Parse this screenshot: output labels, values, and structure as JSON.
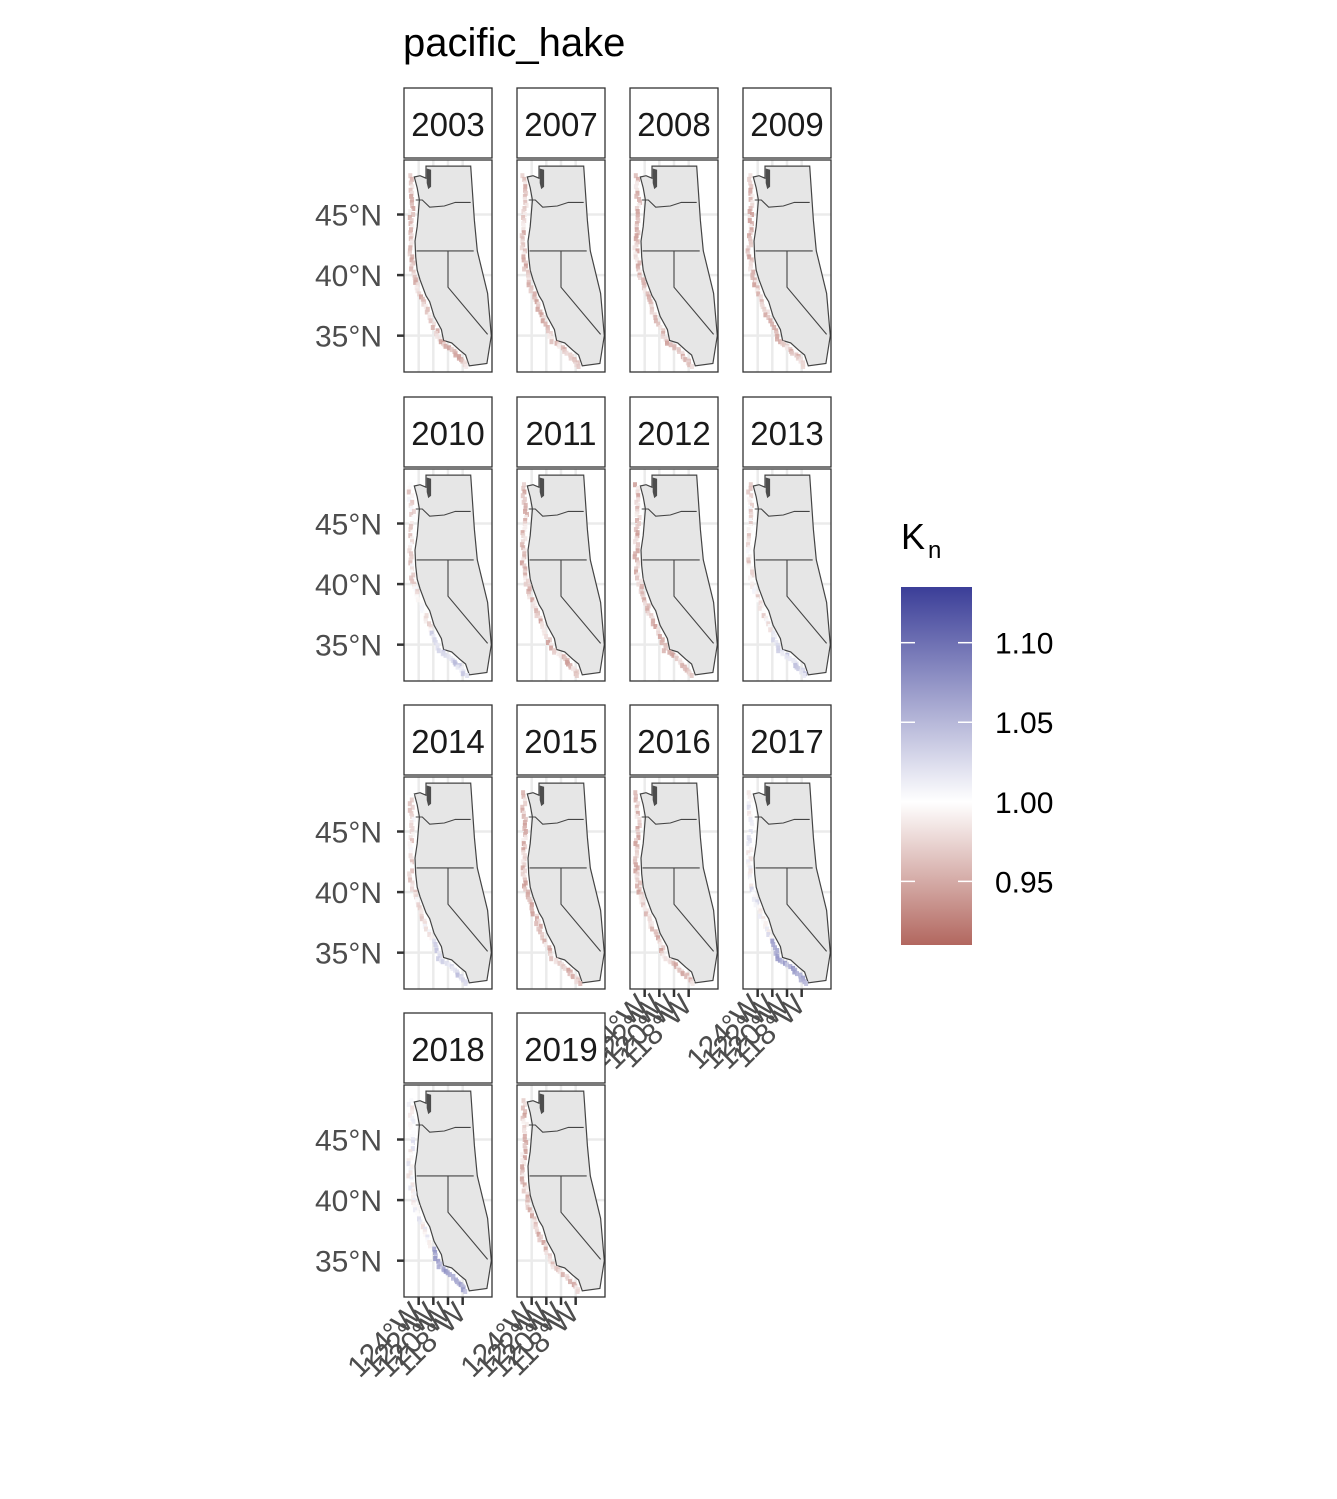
{
  "chart_data": {
    "type": "heatmap",
    "title": "pacific_hake",
    "facets": [
      "2003",
      "2007",
      "2008",
      "2009",
      "2010",
      "2011",
      "2012",
      "2013",
      "2014",
      "2015",
      "2016",
      "2017",
      "2018",
      "2019"
    ],
    "facet_tone": {
      "2003": "low",
      "2007": "low",
      "2008": "low",
      "2009": "low",
      "2010": "mixed",
      "2011": "low",
      "2012": "low",
      "2013": "mixed",
      "2014": "mixed",
      "2015": "low",
      "2016": "low",
      "2017": "high",
      "2018": "high",
      "2019": "low"
    },
    "y_ticks": [
      "45°N",
      "40°N",
      "35°N"
    ],
    "y_tick_values": [
      45,
      40,
      35
    ],
    "x_ticks": [
      "124°W",
      "122°W",
      "120°W",
      "118°W"
    ],
    "x_tick_values": [
      -124,
      -122,
      -120,
      -118
    ],
    "xlim": [
      -126,
      -114
    ],
    "ylim": [
      32,
      49.5
    ],
    "legend": {
      "title": "K",
      "title_subscript": "n",
      "labels": [
        "1.10",
        "1.05",
        "1.00",
        "0.95"
      ],
      "values": [
        1.1,
        1.05,
        1.0,
        0.95
      ],
      "range": [
        0.91,
        1.135
      ],
      "colors": {
        "low": "#b2675f",
        "mid": "#ffffff",
        "high": "#3b3e98"
      },
      "position": "right"
    },
    "map_colors": {
      "land": "#e6e6e6",
      "border": "#444444",
      "grid": "#ebebeb",
      "panel_border": "#333333"
    }
  }
}
